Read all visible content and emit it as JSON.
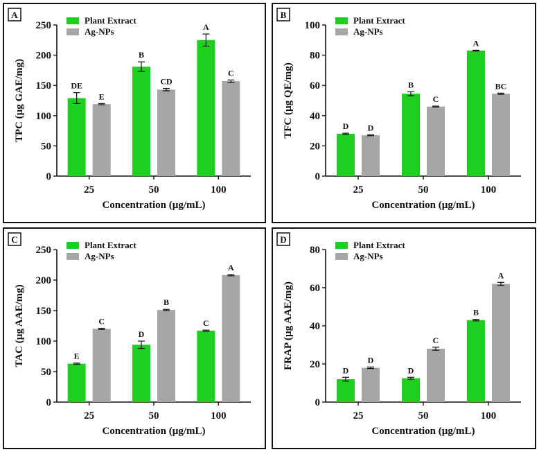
{
  "figure": {
    "colors": {
      "plant": "#1fcf1f",
      "ag": "#a6a6a6",
      "axis": "#111111",
      "frame": "#111111"
    },
    "legend": [
      "Plant Extract",
      "Ag-NPs"
    ]
  },
  "chart_data": [
    {
      "panel": "A",
      "type": "bar",
      "ylabel": "TPC (µg GAE/mg)",
      "xlabel": "Concentration (µg/mL)",
      "categories": [
        "25",
        "50",
        "100"
      ],
      "ylim": [
        0,
        250
      ],
      "yticks": [
        0,
        50,
        100,
        150,
        200,
        250
      ],
      "series": [
        {
          "name": "Plant Extract",
          "values": [
            129,
            181,
            225
          ],
          "errors": [
            9,
            8,
            10
          ],
          "letters": [
            "DE",
            "B",
            "A"
          ]
        },
        {
          "name": "Ag-NPs",
          "values": [
            119,
            143,
            157
          ],
          "errors": [
            1,
            2,
            2
          ],
          "letters": [
            "E",
            "CD",
            "C"
          ]
        }
      ]
    },
    {
      "panel": "B",
      "type": "bar",
      "ylabel": "TFC (µg QE/mg)",
      "xlabel": "Concentration (µg/mL)",
      "categories": [
        "25",
        "50",
        "100"
      ],
      "ylim": [
        0,
        100
      ],
      "yticks": [
        0,
        20,
        40,
        60,
        80,
        100
      ],
      "series": [
        {
          "name": "Plant Extract",
          "values": [
            28,
            54.5,
            83
          ],
          "errors": [
            0.4,
            1.3,
            0.3
          ],
          "letters": [
            "D",
            "B",
            "A"
          ]
        },
        {
          "name": "Ag-NPs",
          "values": [
            27,
            46,
            54.5
          ],
          "errors": [
            0.3,
            0.3,
            0.4
          ],
          "letters": [
            "D",
            "C",
            "BC"
          ]
        }
      ]
    },
    {
      "panel": "C",
      "type": "bar",
      "ylabel": "TAC (µg AAE/mg)",
      "xlabel": "Concentration (µg/mL)",
      "categories": [
        "25",
        "50",
        "100"
      ],
      "ylim": [
        0,
        250
      ],
      "yticks": [
        0,
        50,
        100,
        150,
        200,
        250
      ],
      "series": [
        {
          "name": "Plant Extract",
          "values": [
            63,
            94,
            117
          ],
          "errors": [
            1,
            6,
            1
          ],
          "letters": [
            "E",
            "D",
            "C"
          ]
        },
        {
          "name": "Ag-NPs",
          "values": [
            120,
            151,
            208
          ],
          "errors": [
            1,
            1,
            1
          ],
          "letters": [
            "C",
            "B",
            "A"
          ]
        }
      ]
    },
    {
      "panel": "D",
      "type": "bar",
      "ylabel": "FRAP (µg AAE/mg)",
      "xlabel": "Concentration (µg/mL)",
      "categories": [
        "25",
        "50",
        "100"
      ],
      "ylim": [
        0,
        80
      ],
      "yticks": [
        0,
        20,
        40,
        60,
        80
      ],
      "series": [
        {
          "name": "Plant Extract",
          "values": [
            12,
            12.5,
            43
          ],
          "errors": [
            1,
            0.5,
            0.4
          ],
          "letters": [
            "D",
            "D",
            "B"
          ]
        },
        {
          "name": "Ag-NPs",
          "values": [
            18,
            28,
            62
          ],
          "errors": [
            0.4,
            0.8,
            0.8
          ],
          "letters": [
            "D",
            "C",
            "A"
          ]
        }
      ]
    }
  ]
}
